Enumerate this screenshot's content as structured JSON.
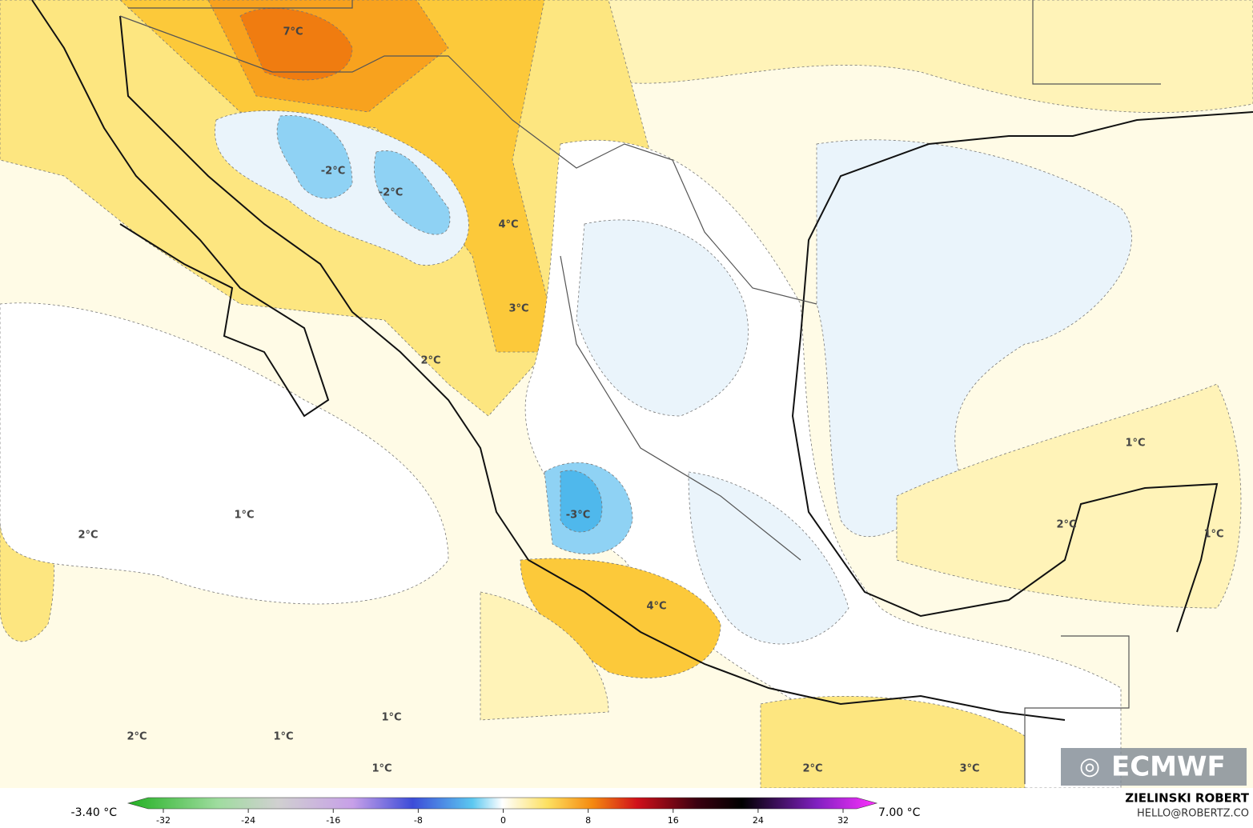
{
  "map_labels": [
    "7°C",
    "-2°C",
    "-2°C",
    "4°C",
    "3°C",
    "2°C",
    "1°C",
    "2°C",
    "1°C",
    "-3°C",
    "1°C",
    "2°C",
    "4°C",
    "1°C",
    "1°C",
    "2°C",
    "1°C",
    "2°C",
    "3°C"
  ],
  "logo": "ECMWF",
  "credit": {
    "name": "ZIELINSKI ROBERT",
    "email": "HELLO@ROBERTZ.CO"
  },
  "colorbar": {
    "min_label": "-3.40 °C",
    "max_label": "7.00 °C",
    "ticks": [
      -32,
      -24,
      -16,
      -8,
      0,
      8,
      16,
      24,
      32
    ]
  }
}
